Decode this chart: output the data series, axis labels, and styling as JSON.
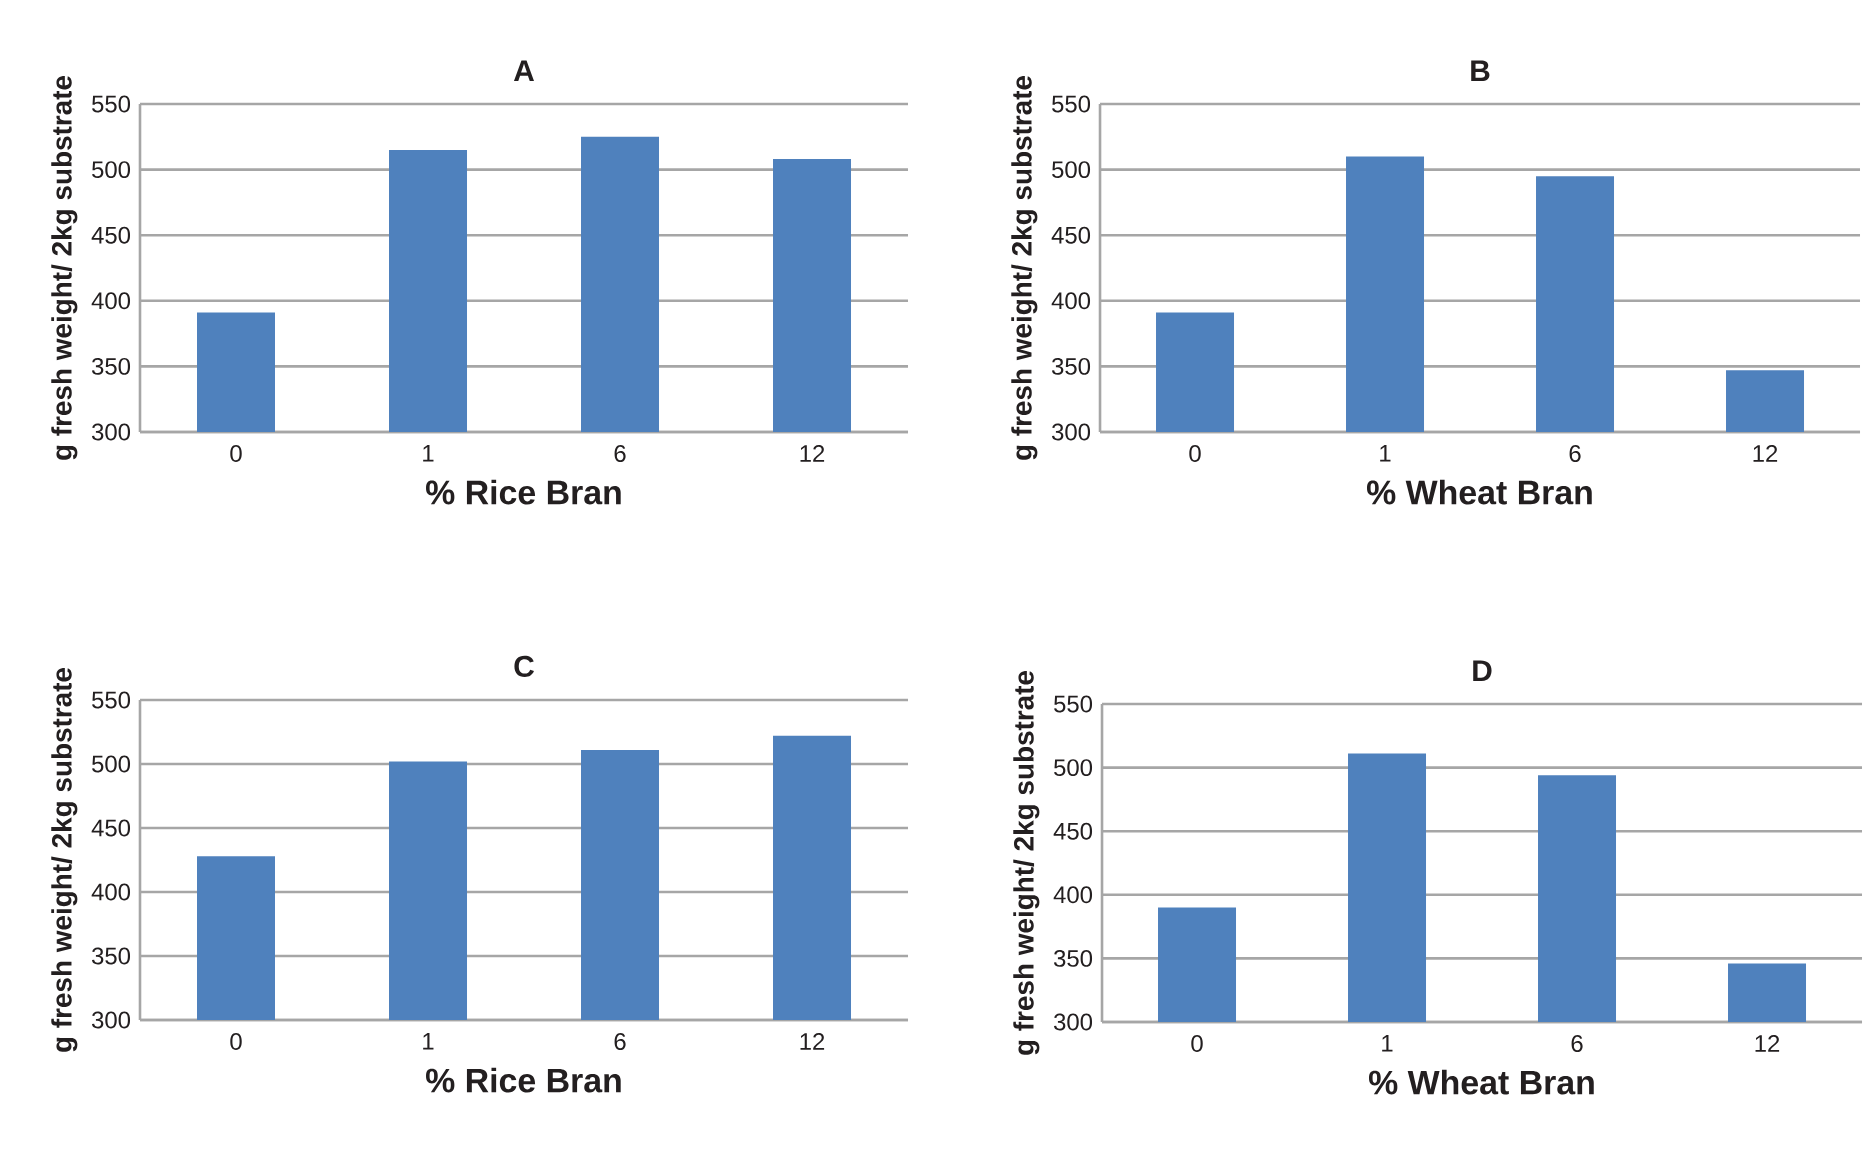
{
  "chart_data": [
    {
      "type": "bar",
      "title": "A",
      "xlabel": "% Rice Bran",
      "ylabel": "g fresh weight/ 2kg substrate",
      "categories": [
        "0",
        "1",
        "6",
        "12"
      ],
      "values": [
        391,
        515,
        525,
        508
      ],
      "color": "#4f81bd",
      "ylim": [
        300,
        550
      ],
      "yticks": [
        300,
        350,
        400,
        450,
        500,
        550
      ],
      "grid": "y"
    },
    {
      "type": "bar",
      "title": "B",
      "xlabel": "% Wheat Bran",
      "ylabel": "g fresh weight/ 2kg substrate",
      "categories": [
        "0",
        "1",
        "6",
        "12"
      ],
      "values": [
        391,
        510,
        495,
        347
      ],
      "color": "#4f81bd",
      "ylim": [
        300,
        550
      ],
      "yticks": [
        300,
        350,
        400,
        450,
        500,
        550
      ],
      "grid": "y"
    },
    {
      "type": "bar",
      "title": "C",
      "xlabel": "% Rice Bran",
      "ylabel": "g fresh weight/ 2kg substrate",
      "categories": [
        "0",
        "1",
        "6",
        "12"
      ],
      "values": [
        428,
        502,
        511,
        522
      ],
      "color": "#4f81bd",
      "ylim": [
        300,
        550
      ],
      "yticks": [
        300,
        350,
        400,
        450,
        500,
        550
      ],
      "grid": "y"
    },
    {
      "type": "bar",
      "title": "D",
      "xlabel": "% Wheat Bran",
      "ylabel": "g fresh weight/ 2kg substrate",
      "categories": [
        "0",
        "1",
        "6",
        "12"
      ],
      "values": [
        390,
        511,
        494,
        346
      ],
      "color": "#4f81bd",
      "ylim": [
        300,
        550
      ],
      "yticks": [
        300,
        350,
        400,
        450,
        500,
        550
      ],
      "grid": "y"
    }
  ]
}
